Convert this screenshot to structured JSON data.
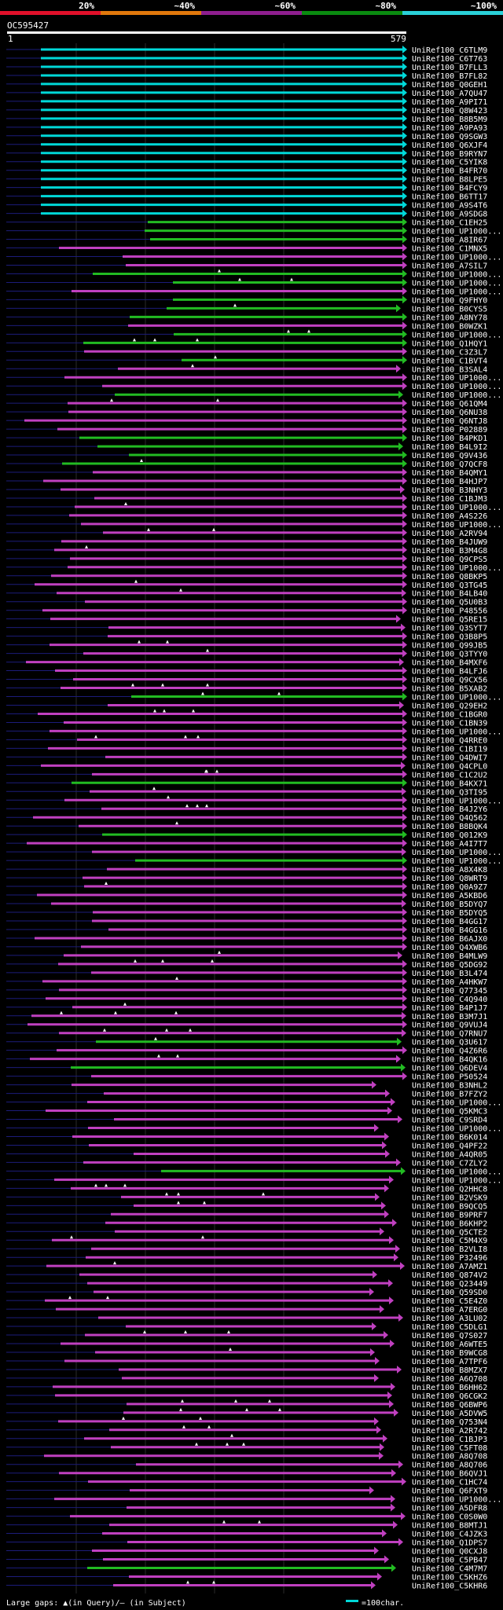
{
  "scale_labels": [
    "20%",
    "~40%",
    "~60%",
    "~80%",
    "~100%"
  ],
  "scale_colors": [
    "#e0102a",
    "#e0780c",
    "#8e1e8e",
    "#0a8a10",
    "#2ad0d8"
  ],
  "query": {
    "name": "OC595427",
    "start": "1",
    "end": "579"
  },
  "colors": {
    "cyan": "#00d8d8",
    "green": "#22bb22",
    "magenta": "#c040c0",
    "navy": "#1c1c7a"
  },
  "footer": {
    "gaps": "Large gaps: ▲(in Query)/– (in Subject)",
    "scale": "=100char."
  },
  "hits": [
    {
      "label": "UniRef100_C6TLM9",
      "color": "cyan"
    },
    {
      "label": "UniRef100_C6T763",
      "color": "cyan"
    },
    {
      "label": "UniRef100_B7FLL3",
      "color": "cyan"
    },
    {
      "label": "UniRef100_B7FL82",
      "color": "cyan"
    },
    {
      "label": "UniRef100_Q0GEH1",
      "color": "cyan"
    },
    {
      "label": "UniRef100_A7QU47",
      "color": "cyan"
    },
    {
      "label": "UniRef100_A9PI71",
      "color": "cyan"
    },
    {
      "label": "UniRef100_Q8W423",
      "color": "cyan"
    },
    {
      "label": "UniRef100_B8B5M9",
      "color": "cyan"
    },
    {
      "label": "UniRef100_A9PA93",
      "color": "cyan"
    },
    {
      "label": "UniRef100_Q9SGW3",
      "color": "cyan"
    },
    {
      "label": "UniRef100_Q6XJF4",
      "color": "cyan"
    },
    {
      "label": "UniRef100_B9RYN7",
      "color": "cyan"
    },
    {
      "label": "UniRef100_C5YIK8",
      "color": "cyan"
    },
    {
      "label": "UniRef100_B4FR70",
      "color": "cyan"
    },
    {
      "label": "UniRef100_B8LPE5",
      "color": "cyan"
    },
    {
      "label": "UniRef100_B4FCY9",
      "color": "cyan"
    },
    {
      "label": "UniRef100_B6TT17",
      "color": "cyan"
    },
    {
      "label": "UniRef100_A9S4T6",
      "color": "cyan"
    },
    {
      "label": "UniRef100_A9SDG8",
      "color": "cyan"
    },
    {
      "label": "UniRef100_C1EH25",
      "color": "green"
    },
    {
      "label": "UniRef100_UP1000...",
      "color": "green"
    },
    {
      "label": "UniRef100_A8IR67",
      "color": "green"
    },
    {
      "label": "UniRef100_C1MNX5",
      "color": "magenta"
    },
    {
      "label": "UniRef100_UP1000...",
      "color": "magenta"
    },
    {
      "label": "UniRef100_A7SIL7",
      "color": "magenta"
    },
    {
      "label": "UniRef100_UP1000...",
      "color": "green"
    },
    {
      "label": "UniRef100_UP1000...",
      "color": "green"
    },
    {
      "label": "UniRef100_UP1000...",
      "color": "magenta"
    },
    {
      "label": "UniRef100_Q9FHY0",
      "color": "green"
    },
    {
      "label": "UniRef100_B0CYS5",
      "color": "green"
    },
    {
      "label": "UniRef100_A8NY78",
      "color": "green"
    },
    {
      "label": "UniRef100_B0WZK1",
      "color": "magenta"
    },
    {
      "label": "UniRef100_UP1000...",
      "color": "green"
    },
    {
      "label": "UniRef100_Q1HQY1",
      "color": "green"
    },
    {
      "label": "UniRef100_C3Z3L7",
      "color": "magenta"
    },
    {
      "label": "UniRef100_C1BVT4",
      "color": "green"
    },
    {
      "label": "UniRef100_B3SAL4",
      "color": "magenta"
    },
    {
      "label": "UniRef100_UP1000...",
      "color": "magenta"
    },
    {
      "label": "UniRef100_UP1000...",
      "color": "magenta"
    },
    {
      "label": "UniRef100_UP1000...",
      "color": "green"
    },
    {
      "label": "UniRef100_Q61QM4",
      "color": "magenta"
    },
    {
      "label": "UniRef100_Q6NU38",
      "color": "magenta"
    },
    {
      "label": "UniRef100_Q6NTJ8",
      "color": "magenta"
    },
    {
      "label": "UniRef100_P02889",
      "color": "magenta"
    },
    {
      "label": "UniRef100_B4PKD1",
      "color": "green"
    },
    {
      "label": "UniRef100_B4L9I2",
      "color": "green"
    },
    {
      "label": "UniRef100_Q9V436",
      "color": "green"
    },
    {
      "label": "UniRef100_Q7QCF8",
      "color": "green"
    },
    {
      "label": "UniRef100_B4QMY1",
      "color": "magenta"
    },
    {
      "label": "UniRef100_B4HJP7",
      "color": "magenta"
    },
    {
      "label": "UniRef100_B3NHY3",
      "color": "magenta"
    },
    {
      "label": "UniRef100_C1BJM3",
      "color": "magenta"
    },
    {
      "label": "UniRef100_UP1000...",
      "color": "magenta"
    },
    {
      "label": "UniRef100_A4S226",
      "color": "magenta"
    },
    {
      "label": "UniRef100_UP1000...",
      "color": "magenta"
    },
    {
      "label": "UniRef100_A2RV94",
      "color": "magenta"
    },
    {
      "label": "UniRef100_B4JUW9",
      "color": "magenta"
    },
    {
      "label": "UniRef100_B3M4G8",
      "color": "magenta"
    },
    {
      "label": "UniRef100_Q9CPS5",
      "color": "magenta"
    },
    {
      "label": "UniRef100_UP1000...",
      "color": "magenta"
    },
    {
      "label": "UniRef100_Q8BKP5",
      "color": "magenta"
    },
    {
      "label": "UniRef100_Q3TG45",
      "color": "magenta"
    },
    {
      "label": "UniRef100_B4LB40",
      "color": "magenta"
    },
    {
      "label": "UniRef100_Q5U0B3",
      "color": "magenta"
    },
    {
      "label": "UniRef100_P48556",
      "color": "magenta"
    },
    {
      "label": "UniRef100_Q5RE15",
      "color": "magenta"
    },
    {
      "label": "UniRef100_Q3SYT7",
      "color": "magenta"
    },
    {
      "label": "UniRef100_Q3B8P5",
      "color": "magenta"
    },
    {
      "label": "UniRef100_Q99JB5",
      "color": "magenta"
    },
    {
      "label": "UniRef100_Q3TYY0",
      "color": "magenta"
    },
    {
      "label": "UniRef100_B4MXF6",
      "color": "magenta"
    },
    {
      "label": "UniRef100_B4LFJ6",
      "color": "magenta"
    },
    {
      "label": "UniRef100_Q9CX56",
      "color": "magenta"
    },
    {
      "label": "UniRef100_B5XAB2",
      "color": "magenta"
    },
    {
      "label": "UniRef100_UP1000...",
      "color": "green"
    },
    {
      "label": "UniRef100_Q29EH2",
      "color": "magenta"
    },
    {
      "label": "UniRef100_C1BGR0",
      "color": "magenta"
    },
    {
      "label": "UniRef100_C1BN39",
      "color": "magenta"
    },
    {
      "label": "UniRef100_UP1000...",
      "color": "magenta"
    },
    {
      "label": "UniRef100_Q4RRE0",
      "color": "magenta"
    },
    {
      "label": "UniRef100_C1BI19",
      "color": "magenta"
    },
    {
      "label": "UniRef100_Q4DWI7",
      "color": "magenta"
    },
    {
      "label": "UniRef100_Q4CPL0",
      "color": "magenta"
    },
    {
      "label": "UniRef100_C1C2U2",
      "color": "magenta"
    },
    {
      "label": "UniRef100_B4KX71",
      "color": "green"
    },
    {
      "label": "UniRef100_Q3TI95",
      "color": "magenta"
    },
    {
      "label": "UniRef100_UP1000...",
      "color": "magenta"
    },
    {
      "label": "UniRef100_B4J2Y6",
      "color": "magenta"
    },
    {
      "label": "UniRef100_Q4Q562",
      "color": "magenta"
    },
    {
      "label": "UniRef100_B8BQK4",
      "color": "magenta"
    },
    {
      "label": "UniRef100_Q012K9",
      "color": "green"
    },
    {
      "label": "UniRef100_A4I7T7",
      "color": "magenta"
    },
    {
      "label": "UniRef100_UP1000...",
      "color": "magenta"
    },
    {
      "label": "UniRef100_UP1000...",
      "color": "green"
    },
    {
      "label": "UniRef100_A8X4K8",
      "color": "magenta"
    },
    {
      "label": "UniRef100_Q8WRT9",
      "color": "magenta"
    },
    {
      "label": "UniRef100_Q0A9Z7",
      "color": "magenta"
    },
    {
      "label": "UniRef100_A5KBD6",
      "color": "magenta"
    },
    {
      "label": "UniRef100_B5DYQ7",
      "color": "magenta"
    },
    {
      "label": "UniRef100_B5DYQ5",
      "color": "magenta"
    },
    {
      "label": "UniRef100_B4GG17",
      "color": "magenta"
    },
    {
      "label": "UniRef100_B4GG16",
      "color": "magenta"
    },
    {
      "label": "UniRef100_B6AJX0",
      "color": "magenta"
    },
    {
      "label": "UniRef100_Q4XWB6",
      "color": "magenta"
    },
    {
      "label": "UniRef100_B4MLW9",
      "color": "magenta"
    },
    {
      "label": "UniRef100_Q5DG92",
      "color": "magenta"
    },
    {
      "label": "UniRef100_B3L474",
      "color": "magenta"
    },
    {
      "label": "UniRef100_A4HKW7",
      "color": "magenta"
    },
    {
      "label": "UniRef100_Q77345",
      "color": "magenta"
    },
    {
      "label": "UniRef100_C4Q940",
      "color": "magenta"
    },
    {
      "label": "UniRef100_B4P1J7",
      "color": "magenta"
    },
    {
      "label": "UniRef100_B3M7J1",
      "color": "magenta"
    },
    {
      "label": "UniRef100_Q9VUJ4",
      "color": "magenta"
    },
    {
      "label": "UniRef100_Q7RNU7",
      "color": "magenta"
    },
    {
      "label": "UniRef100_Q3U617",
      "color": "green"
    },
    {
      "label": "UniRef100_Q4Z6R6",
      "color": "magenta"
    },
    {
      "label": "UniRef100_B4QK16",
      "color": "magenta"
    },
    {
      "label": "UniRef100_Q6DEV4",
      "color": "green"
    },
    {
      "label": "UniRef100_P50524",
      "color": "magenta"
    },
    {
      "label": "UniRef100_B3NHL2",
      "color": "magenta"
    },
    {
      "label": "UniRef100_B7FZY2",
      "color": "magenta"
    },
    {
      "label": "UniRef100_UP1000...",
      "color": "magenta"
    },
    {
      "label": "UniRef100_Q5KMC3",
      "color": "magenta"
    },
    {
      "label": "UniRef100_C9SRD4",
      "color": "magenta"
    },
    {
      "label": "UniRef100_UP1000...",
      "color": "magenta"
    },
    {
      "label": "UniRef100_B6K014",
      "color": "magenta"
    },
    {
      "label": "UniRef100_Q4PF22",
      "color": "magenta"
    },
    {
      "label": "UniRef100_A4QR05",
      "color": "magenta"
    },
    {
      "label": "UniRef100_C7ZLY2",
      "color": "magenta"
    },
    {
      "label": "UniRef100_UP1000...",
      "color": "green"
    },
    {
      "label": "UniRef100_UP1000...",
      "color": "magenta"
    },
    {
      "label": "UniRef100_Q2HHC8",
      "color": "magenta"
    },
    {
      "label": "UniRef100_B2VSK9",
      "color": "magenta"
    },
    {
      "label": "UniRef100_B9QCQ5",
      "color": "magenta"
    },
    {
      "label": "UniRef100_B9PRF7",
      "color": "magenta"
    },
    {
      "label": "UniRef100_B6KHP2",
      "color": "magenta"
    },
    {
      "label": "UniRef100_Q5CTE2",
      "color": "magenta"
    },
    {
      "label": "UniRef100_C5M4X9",
      "color": "magenta"
    },
    {
      "label": "UniRef100_B2VLI8",
      "color": "magenta"
    },
    {
      "label": "UniRef100_P32496",
      "color": "magenta"
    },
    {
      "label": "UniRef100_A7AMZ1",
      "color": "magenta"
    },
    {
      "label": "UniRef100_Q874V2",
      "color": "magenta"
    },
    {
      "label": "UniRef100_Q23449",
      "color": "magenta"
    },
    {
      "label": "UniRef100_Q59SD0",
      "color": "magenta"
    },
    {
      "label": "UniRef100_C5E4Z0",
      "color": "magenta"
    },
    {
      "label": "UniRef100_A7ERG0",
      "color": "magenta"
    },
    {
      "label": "UniRef100_A3LU02",
      "color": "magenta"
    },
    {
      "label": "UniRef100_C5DLG1",
      "color": "magenta"
    },
    {
      "label": "UniRef100_Q7S027",
      "color": "magenta"
    },
    {
      "label": "UniRef100_A6WTE5",
      "color": "magenta"
    },
    {
      "label": "UniRef100_B9WCG8",
      "color": "magenta"
    },
    {
      "label": "UniRef100_A7TPF6",
      "color": "magenta"
    },
    {
      "label": "UniRef100_B8MZX7",
      "color": "magenta"
    },
    {
      "label": "UniRef100_A6Q708",
      "color": "magenta"
    },
    {
      "label": "UniRef100_B6HH62",
      "color": "magenta"
    },
    {
      "label": "UniRef100_Q6CGK2",
      "color": "magenta"
    },
    {
      "label": "UniRef100_Q6BWP6",
      "color": "magenta"
    },
    {
      "label": "UniRef100_A5DVW5",
      "color": "magenta"
    },
    {
      "label": "UniRef100_Q753N4",
      "color": "magenta"
    },
    {
      "label": "UniRef100_A2R742",
      "color": "magenta"
    },
    {
      "label": "UniRef100_C1BJP3",
      "color": "magenta"
    },
    {
      "label": "UniRef100_C5FT08",
      "color": "magenta"
    },
    {
      "label": "UniRef100_A8Q708",
      "color": "magenta"
    },
    {
      "label": "UniRef100_A8Q706",
      "color": "magenta"
    },
    {
      "label": "UniRef100_B6QVJ1",
      "color": "magenta"
    },
    {
      "label": "UniRef100_C1HC74",
      "color": "magenta"
    },
    {
      "label": "UniRef100_Q6FXT9",
      "color": "magenta"
    },
    {
      "label": "UniRef100_UP1000...",
      "color": "magenta"
    },
    {
      "label": "UniRef100_A5DFR8",
      "color": "magenta"
    },
    {
      "label": "UniRef100_C0S0W0",
      "color": "magenta"
    },
    {
      "label": "UniRef100_B8MTJ1",
      "color": "magenta"
    },
    {
      "label": "UniRef100_C4JZK3",
      "color": "magenta"
    },
    {
      "label": "UniRef100_Q1DPS7",
      "color": "magenta"
    },
    {
      "label": "UniRef100_Q0CXJ8",
      "color": "magenta"
    },
    {
      "label": "UniRef100_C5PB47",
      "color": "magenta"
    },
    {
      "label": "UniRef100_C4M7M7",
      "color": "green"
    },
    {
      "label": "UniRef100_C5KHZ6",
      "color": "magenta"
    },
    {
      "label": "UniRef100_C5KHR6",
      "color": "magenta"
    }
  ]
}
